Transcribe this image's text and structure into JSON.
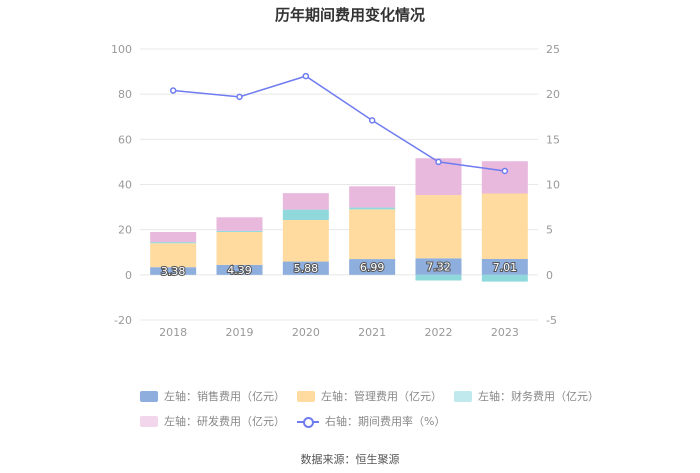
{
  "chart_data": {
    "type": "bar",
    "title": "历年期间费用变化情况",
    "categories": [
      "2018",
      "2019",
      "2020",
      "2021",
      "2022",
      "2023"
    ],
    "left_axis": {
      "min": -20,
      "max": 100,
      "ticks": [
        -20,
        0,
        20,
        40,
        60,
        80,
        100
      ]
    },
    "right_axis": {
      "min": -5,
      "max": 25,
      "ticks": [
        -5,
        0,
        5,
        10,
        15,
        20,
        25
      ]
    },
    "series": [
      {
        "name": "左轴：销售费用（亿元）",
        "color": "#8eaede",
        "values": [
          3.38,
          4.39,
          5.88,
          6.99,
          7.32,
          7.01
        ],
        "labels": [
          "3.38",
          "4.39",
          "5.88",
          "6.99",
          "7.32",
          "7.01"
        ]
      },
      {
        "name": "左轴：管理费用（亿元）",
        "color": "#ffdba0",
        "values": [
          10.6,
          14.6,
          18.4,
          22.0,
          28.0,
          29.0
        ]
      },
      {
        "name": "左轴：财务费用（亿元）",
        "color": "#8fd9dd",
        "values": [
          0.5,
          0.5,
          4.6,
          0.8,
          -2.5,
          -3.0
        ]
      },
      {
        "name": "左轴：研发费用（亿元）",
        "color": "#e8b9dc",
        "values": [
          4.5,
          6.0,
          7.3,
          9.4,
          16.3,
          14.3
        ]
      }
    ],
    "line": {
      "name": "右轴：期间费用率（%）",
      "color": "#6f7cf0",
      "values": [
        20.4,
        19.7,
        22.0,
        17.1,
        12.5,
        11.5
      ]
    }
  },
  "source": "数据来源：恒生聚源"
}
